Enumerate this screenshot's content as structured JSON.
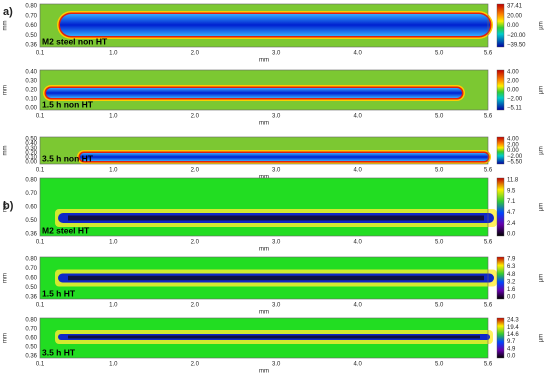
{
  "figure": {
    "groups": [
      {
        "label": "a)",
        "panels": [
          {
            "title": "M2 steel non HT",
            "yticks": [
              "0.80",
              "0.70",
              "0.60",
              "0.50",
              "0.36"
            ],
            "y_label": "mm",
            "xticks": [
              "0.1",
              "1.0",
              "2.0",
              "3.0",
              "4.0",
              "5.0",
              "5.6"
            ],
            "x_label": "mm",
            "cbar_ticks": [
              "37.41",
              "20.00",
              "0.00",
              "−20.00",
              "−39.50"
            ],
            "cbar_unit": "µm"
          },
          {
            "title": "1.5 h non HT",
            "yticks": [
              "0.40",
              "0.30",
              "0.20",
              "0.10",
              "0.00"
            ],
            "y_label": "mm",
            "xticks": [
              "0.1",
              "1.0",
              "2.0",
              "3.0",
              "4.0",
              "5.0",
              "5.6"
            ],
            "x_label": "mm",
            "cbar_ticks": [
              "4.00",
              "2.00",
              "0.00",
              "−2.00",
              "−5.11"
            ],
            "cbar_unit": "µm"
          },
          {
            "title": "3.5 h non HT",
            "yticks": [
              "0.50",
              "0.40",
              "0.30",
              "0.20",
              "0.10",
              "0.00"
            ],
            "y_label": "mm",
            "xticks": [
              "0.1",
              "1.0",
              "2.0",
              "3.0",
              "4.0",
              "5.0",
              "5.6"
            ],
            "x_label": "mm",
            "cbar_ticks": [
              "4.00",
              "2.00",
              "0.00",
              "−2.00",
              "−5.50"
            ],
            "cbar_unit": "µm"
          }
        ]
      },
      {
        "label": "b)",
        "panels": [
          {
            "title": "M2 steel HT",
            "yticks": [
              "0.80",
              "0.70",
              "0.60",
              "0.50",
              "0.36"
            ],
            "y_label": "mm",
            "xticks": [
              "0.1",
              "1.0",
              "2.0",
              "3.0",
              "4.0",
              "5.0",
              "5.6"
            ],
            "x_label": "mm",
            "cbar_ticks": [
              "11.8",
              "9.5",
              "7.1",
              "4.7",
              "2.4",
              "0.0"
            ],
            "cbar_unit": "µm"
          },
          {
            "title": "1.5 h HT",
            "yticks": [
              "0.80",
              "0.70",
              "0.60",
              "0.50",
              "0.36"
            ],
            "y_label": "mm",
            "xticks": [
              "0.1",
              "1.0",
              "2.0",
              "3.0",
              "4.0",
              "5.0",
              "5.6"
            ],
            "x_label": "mm",
            "cbar_ticks": [
              "7.9",
              "6.3",
              "4.8",
              "3.2",
              "1.6",
              "0.0"
            ],
            "cbar_unit": "µm"
          },
          {
            "title": "3.5 h HT",
            "yticks": [
              "0.80",
              "0.70",
              "0.60",
              "0.50",
              "0.36"
            ],
            "y_label": "mm",
            "xticks": [
              "0.1",
              "1.0",
              "2.0",
              "3.0",
              "4.0",
              "5.0",
              "5.6"
            ],
            "x_label": "mm",
            "cbar_ticks": [
              "24.3",
              "19.4",
              "14.6",
              "9.7",
              "4.9",
              "0.0"
            ],
            "cbar_unit": "µm"
          }
        ]
      }
    ]
  }
}
